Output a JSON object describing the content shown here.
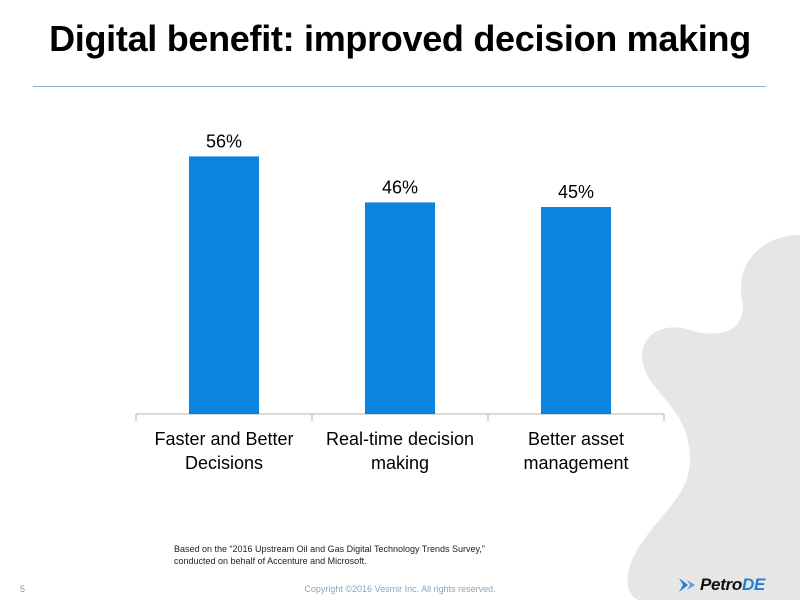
{
  "slide": {
    "title": "Digital benefit: improved decision making",
    "footnote_line1": "Based on the “2016 Upstream Oil and Gas Digital Technology Trends Survey,”",
    "footnote_line2": "conducted on behalf of Accenture and Microsoft.",
    "page_number": "5",
    "copyright": "Copyright ©2016 Vesmir Inc. All rights reserved.",
    "logo_text_a": "Petro",
    "logo_text_b": "DE"
  },
  "colors": {
    "bar": "#0a84dc",
    "axis": "#b3b3b3",
    "rule": "#7fb8dc",
    "background_shape": "#e6e6e6"
  },
  "chart_data": {
    "type": "bar",
    "title": "",
    "xlabel": "",
    "ylabel": "",
    "categories": [
      [
        "Faster and Better",
        "Decisions"
      ],
      [
        "Real-time decision",
        "making"
      ],
      [
        "Better asset",
        "management"
      ]
    ],
    "values": [
      56,
      46,
      45
    ],
    "data_labels": [
      "56%",
      "46%",
      "45%"
    ],
    "ylim": [
      0,
      60
    ],
    "grid": false,
    "legend": "none"
  }
}
